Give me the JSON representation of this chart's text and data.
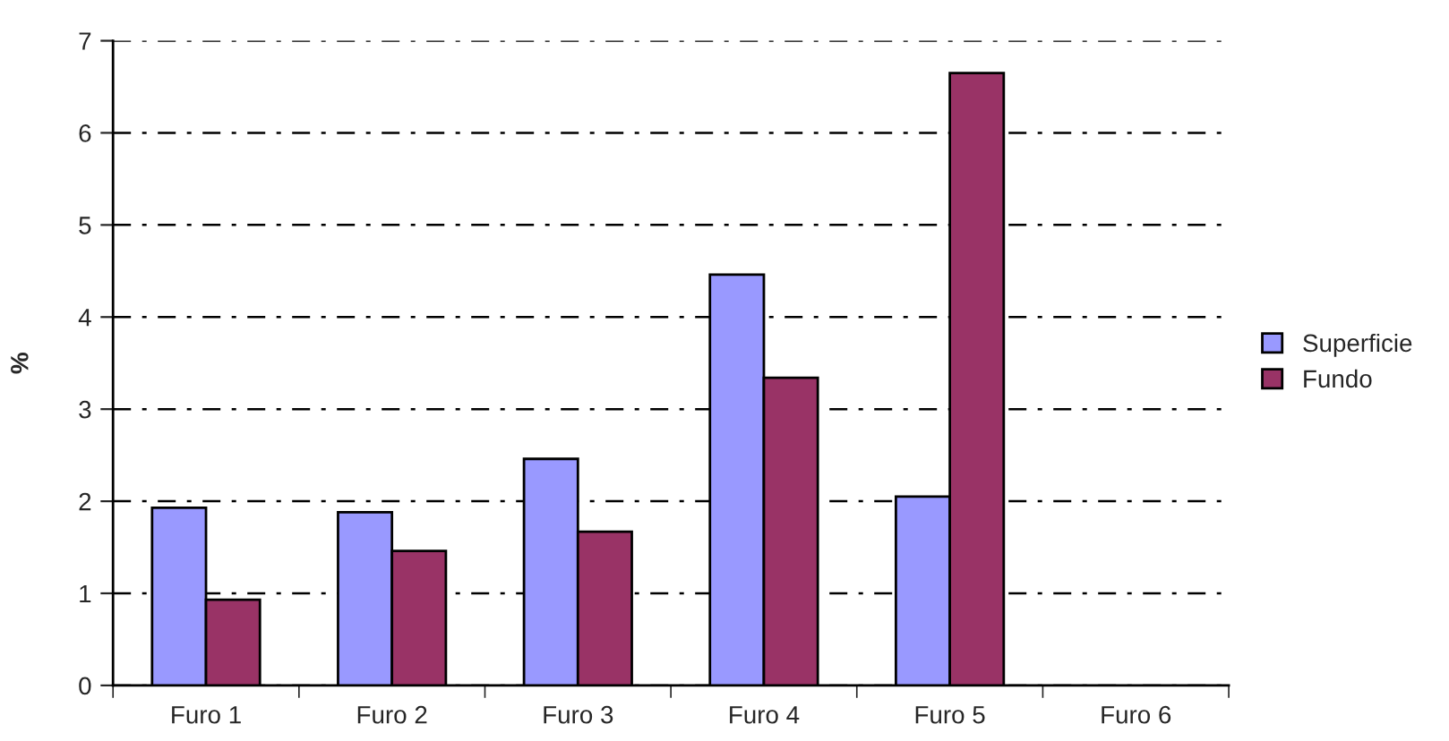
{
  "chart_data": {
    "type": "bar",
    "ylabel": "%",
    "categories": [
      "Furo 1",
      "Furo 2",
      "Furo 3",
      "Furo 4",
      "Furo 5",
      "Furo 6"
    ],
    "series": [
      {
        "name": "Superficie",
        "color": "#9999ff",
        "values": [
          1.93,
          1.88,
          2.46,
          4.46,
          2.05,
          null
        ]
      },
      {
        "name": "Fundo",
        "color": "#993366",
        "values": [
          0.93,
          1.46,
          1.67,
          3.34,
          6.65,
          null
        ]
      }
    ],
    "ylim": [
      0,
      7
    ],
    "yticks": [
      0,
      1,
      2,
      3,
      4,
      5,
      6,
      7
    ],
    "grid": "y",
    "legend": "right"
  }
}
